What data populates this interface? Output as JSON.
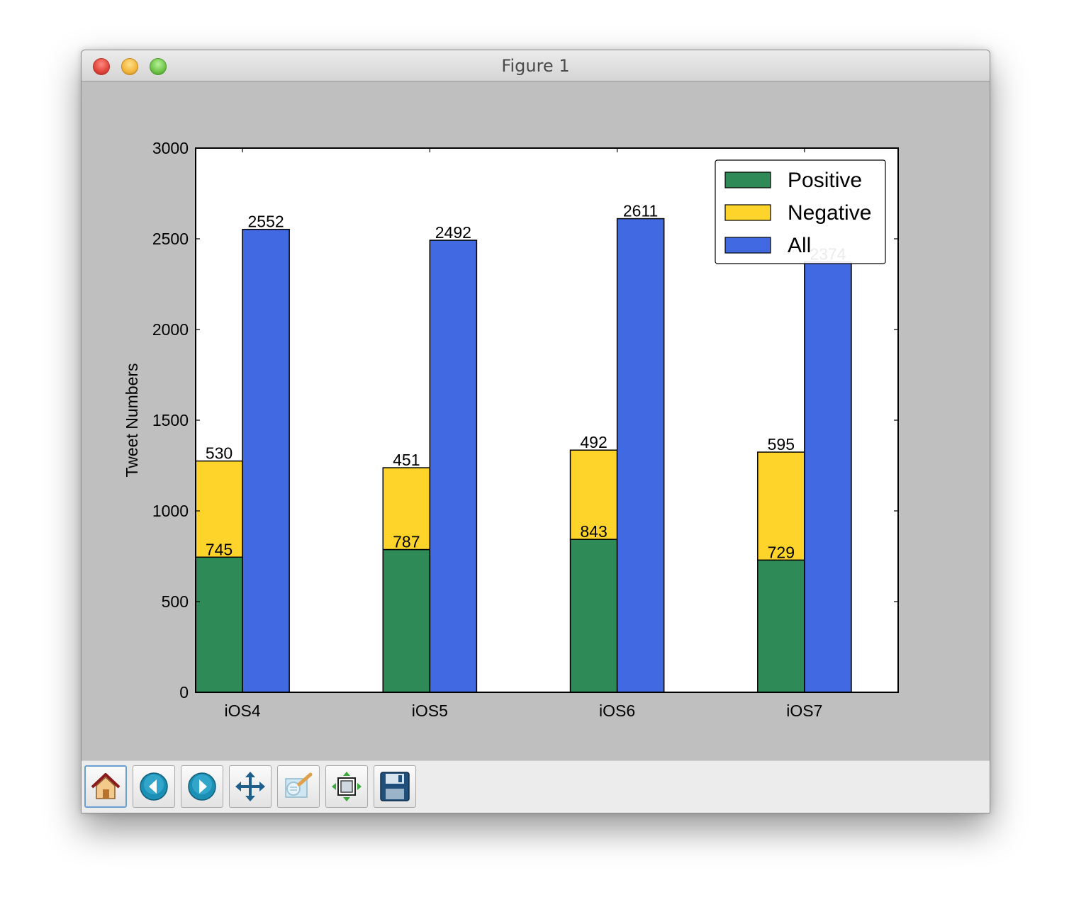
{
  "window": {
    "title": "Figure 1"
  },
  "toolbar": {
    "buttons": [
      {
        "name": "home-button",
        "icon": "home-icon"
      },
      {
        "name": "back-button",
        "icon": "back-arrow-icon"
      },
      {
        "name": "forward-button",
        "icon": "forward-arrow-icon"
      },
      {
        "name": "pan-button",
        "icon": "move-arrows-icon"
      },
      {
        "name": "zoom-button",
        "icon": "zoom-rect-icon"
      },
      {
        "name": "subplots-button",
        "icon": "subplots-icon"
      },
      {
        "name": "save-button",
        "icon": "floppy-disk-icon"
      }
    ]
  },
  "chart_data": {
    "type": "bar",
    "ylabel": "Tweet Numbers",
    "ylim": [
      0,
      3000
    ],
    "yticks": [
      0,
      500,
      1000,
      1500,
      2000,
      2500,
      3000
    ],
    "categories": [
      "iOS4",
      "iOS5",
      "iOS6",
      "iOS7"
    ],
    "series": [
      {
        "name": "Positive",
        "values": [
          745,
          787,
          843,
          729
        ],
        "color": "#2e8b57",
        "stack": "sentiment"
      },
      {
        "name": "Negative",
        "values": [
          530,
          451,
          492,
          595
        ],
        "color": "#ffd42a",
        "stack": "sentiment"
      },
      {
        "name": "All",
        "values": [
          2552,
          2492,
          2611,
          2374
        ],
        "color": "#4169e1",
        "stack": "all"
      }
    ],
    "legend_position": "top-right",
    "grid": false
  }
}
